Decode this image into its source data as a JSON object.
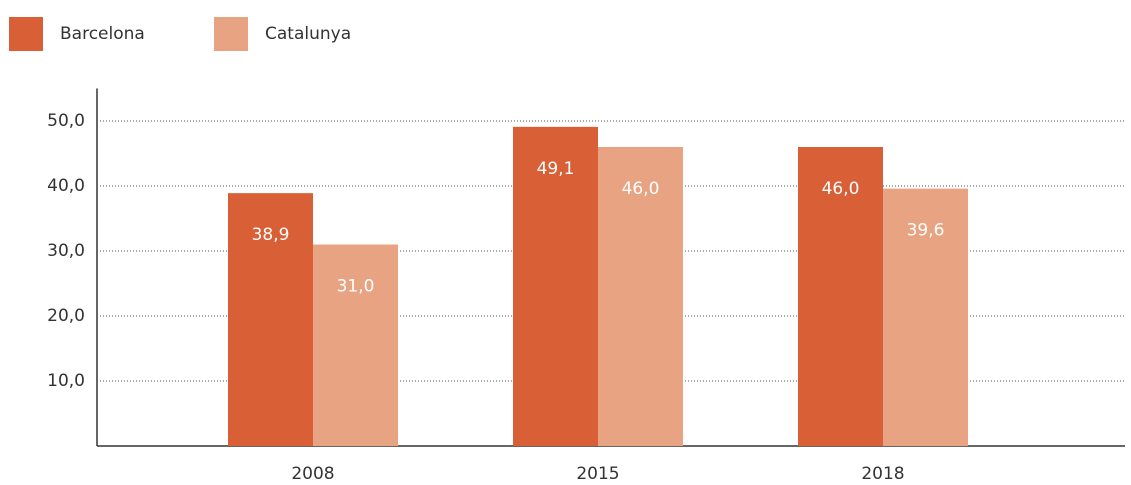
{
  "chart_data": {
    "type": "bar",
    "categories": [
      "2008",
      "2015",
      "2018"
    ],
    "series": [
      {
        "name": "Barcelona",
        "color": "#d95f37",
        "values": [
          38.9,
          49.1,
          46.0
        ],
        "value_labels": [
          "38,9",
          "49,1",
          "46,0"
        ]
      },
      {
        "name": "Catalunya",
        "color": "#e8a482",
        "values": [
          31.0,
          46.0,
          39.6
        ],
        "value_labels": [
          "31,0",
          "46,0",
          "39,6"
        ]
      }
    ],
    "ylim": [
      0,
      55
    ],
    "yticks": [
      {
        "value": 10,
        "label": "10,0"
      },
      {
        "value": 20,
        "label": "20,0"
      },
      {
        "value": 30,
        "label": "30,0"
      },
      {
        "value": 40,
        "label": "40,0"
      },
      {
        "value": 50,
        "label": "50,0"
      }
    ],
    "grid": true,
    "legend": "top-left"
  }
}
